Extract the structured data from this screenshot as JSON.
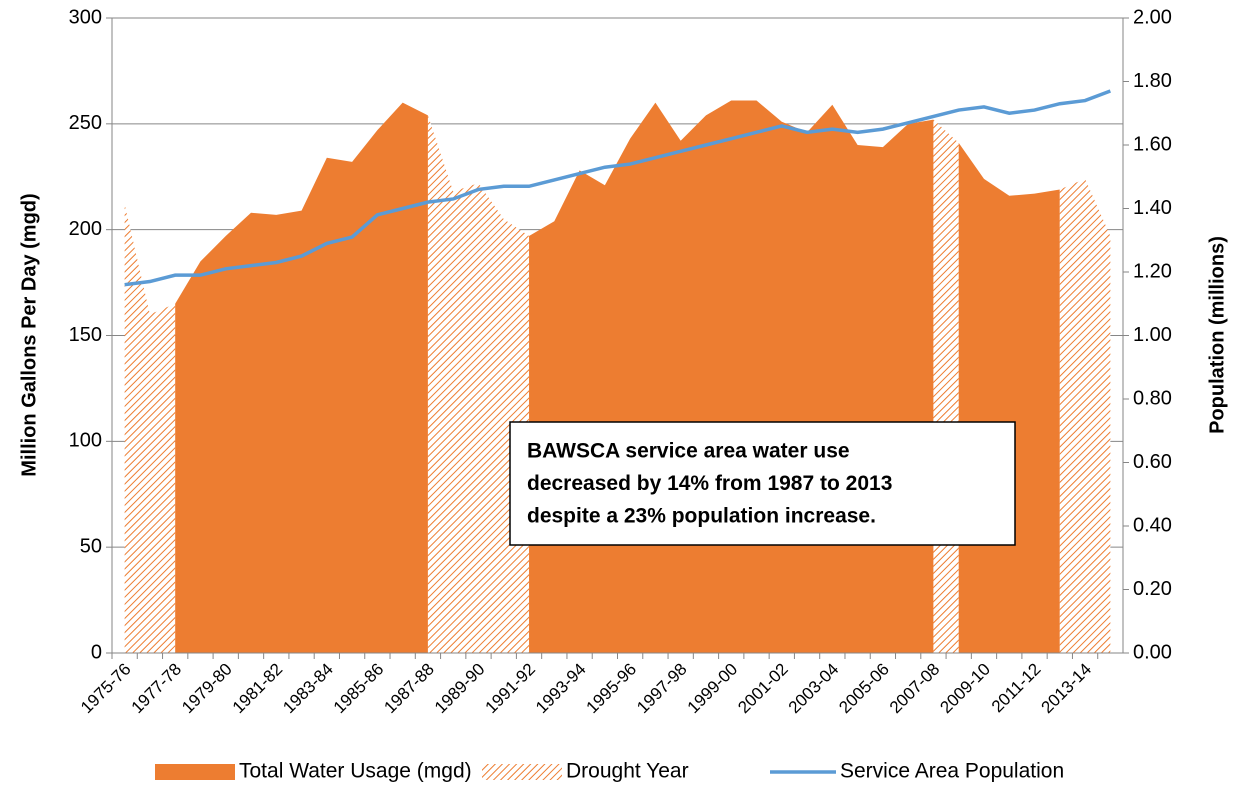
{
  "chart_data": {
    "type": "area-line",
    "categories": [
      "1975-76",
      null,
      "1977-78",
      null,
      "1979-80",
      null,
      "1981-82",
      null,
      "1983-84",
      null,
      "1985-86",
      null,
      "1987-88",
      null,
      "1989-90",
      null,
      "1991-92",
      null,
      "1993-94",
      null,
      "1995-96",
      null,
      "1997-98",
      null,
      "1999-00",
      null,
      "2001-02",
      null,
      "2003-04",
      null,
      "2005-06",
      null,
      "2007-08",
      null,
      "2009-10",
      null,
      "2011-12",
      null,
      "2013-14",
      null
    ],
    "series": [
      {
        "name": "Total Water Usage (mgd)",
        "color": "#ed7d31",
        "values": [
          212,
          160,
          165,
          185,
          197,
          208,
          207,
          209,
          234,
          232,
          247,
          260,
          254,
          218,
          222,
          205,
          197,
          204,
          228,
          221,
          243,
          260,
          242,
          254,
          261,
          261,
          251,
          246,
          259,
          240,
          239,
          250,
          252,
          241,
          224,
          216,
          217,
          219,
          224,
          197
        ]
      },
      {
        "name": "Drought Year",
        "color": "#ed7d31",
        "hatched": true,
        "drought": [
          true,
          true,
          true,
          false,
          false,
          false,
          false,
          false,
          false,
          false,
          false,
          false,
          true,
          true,
          true,
          true,
          true,
          false,
          false,
          false,
          false,
          false,
          false,
          false,
          false,
          false,
          false,
          false,
          false,
          false,
          false,
          false,
          true,
          true,
          false,
          false,
          false,
          true,
          true,
          true
        ]
      },
      {
        "name": "Service Area Population",
        "color": "#5b9bd5",
        "axis": "y2",
        "values": [
          1.16,
          1.17,
          1.19,
          1.19,
          1.21,
          1.22,
          1.23,
          1.25,
          1.29,
          1.31,
          1.38,
          1.4,
          1.42,
          1.43,
          1.46,
          1.47,
          1.47,
          1.49,
          1.51,
          1.53,
          1.54,
          1.56,
          1.58,
          1.6,
          1.62,
          1.64,
          1.66,
          1.64,
          1.65,
          1.64,
          1.65,
          1.67,
          1.69,
          1.71,
          1.72,
          1.7,
          1.71,
          1.73,
          1.74,
          1.77
        ]
      }
    ],
    "y_label": "Million Gallons Per Day (mgd)",
    "y2_label": "Population (millions)",
    "ylim": [
      0,
      300
    ],
    "yticks": [
      0,
      50,
      100,
      150,
      200,
      250,
      300
    ],
    "y2lim": [
      0,
      2
    ],
    "y2ticks": [
      {
        "value": 0,
        "label": "0.00"
      },
      {
        "value": 0.2,
        "label": "0.20"
      },
      {
        "value": 0.4,
        "label": "0.40"
      },
      {
        "value": 0.6,
        "label": "0.60"
      },
      {
        "value": 0.8,
        "label": "0.80"
      },
      {
        "value": 1,
        "label": "1.00"
      },
      {
        "value": 1.2,
        "label": "1.20"
      },
      {
        "value": 1.4,
        "label": "1.40"
      },
      {
        "value": 1.6,
        "label": "1.60"
      },
      {
        "value": 1.8,
        "label": "1.80"
      },
      {
        "value": 2,
        "label": "2.00"
      }
    ],
    "grid": true,
    "legend": "bottom",
    "annotation": [
      "BAWSCA service area water use",
      "decreased by 14% from 1987 to 2013",
      "despite a 23% population increase."
    ]
  }
}
